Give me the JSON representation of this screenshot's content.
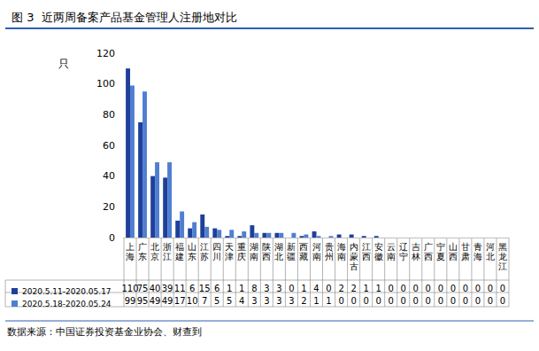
{
  "chart_data": {
    "type": "bar",
    "title": "图 3  近两周备案产品基金管理人注册地对比",
    "y_label": "只",
    "annotations": [
      "数据来源：中国证券投资基金业协会、财查到"
    ],
    "categories": [
      "上海",
      "广东",
      "北京",
      "浙江",
      "福建",
      "山东",
      "江苏",
      "四川",
      "天津",
      "重庆",
      "湖南",
      "陕西",
      "湖北",
      "新疆",
      "西藏",
      "河南",
      "贵州",
      "海南",
      "内蒙古",
      "江西",
      "安徽",
      "云南",
      "辽宁",
      "吉林",
      "广西",
      "宁夏",
      "山西",
      "甘肃",
      "青海",
      "河北",
      "黑龙江"
    ],
    "series": [
      {
        "name": "2020.5.11-2020.05.17",
        "color": "#1f3f9a",
        "values": [
          110,
          75,
          40,
          39,
          11,
          6,
          15,
          6,
          1,
          1,
          8,
          3,
          3,
          0,
          1,
          4,
          0,
          2,
          2,
          1,
          1,
          0,
          0,
          0,
          0,
          0,
          0,
          0,
          0,
          0,
          0
        ]
      },
      {
        "name": "2020.5.18-2020.05.24",
        "color": "#4f7fd0",
        "values": [
          99,
          95,
          49,
          49,
          17,
          10,
          7,
          5,
          5,
          4,
          3,
          3,
          3,
          3,
          2,
          1,
          1,
          0,
          0,
          0,
          0,
          0,
          0,
          0,
          0,
          0,
          0,
          0,
          0,
          0,
          0
        ]
      }
    ],
    "ylim": [
      0,
      120
    ],
    "yticks": [
      0,
      20,
      40,
      60,
      80,
      100,
      120
    ],
    "grid": false,
    "legend": "bottom-left"
  }
}
